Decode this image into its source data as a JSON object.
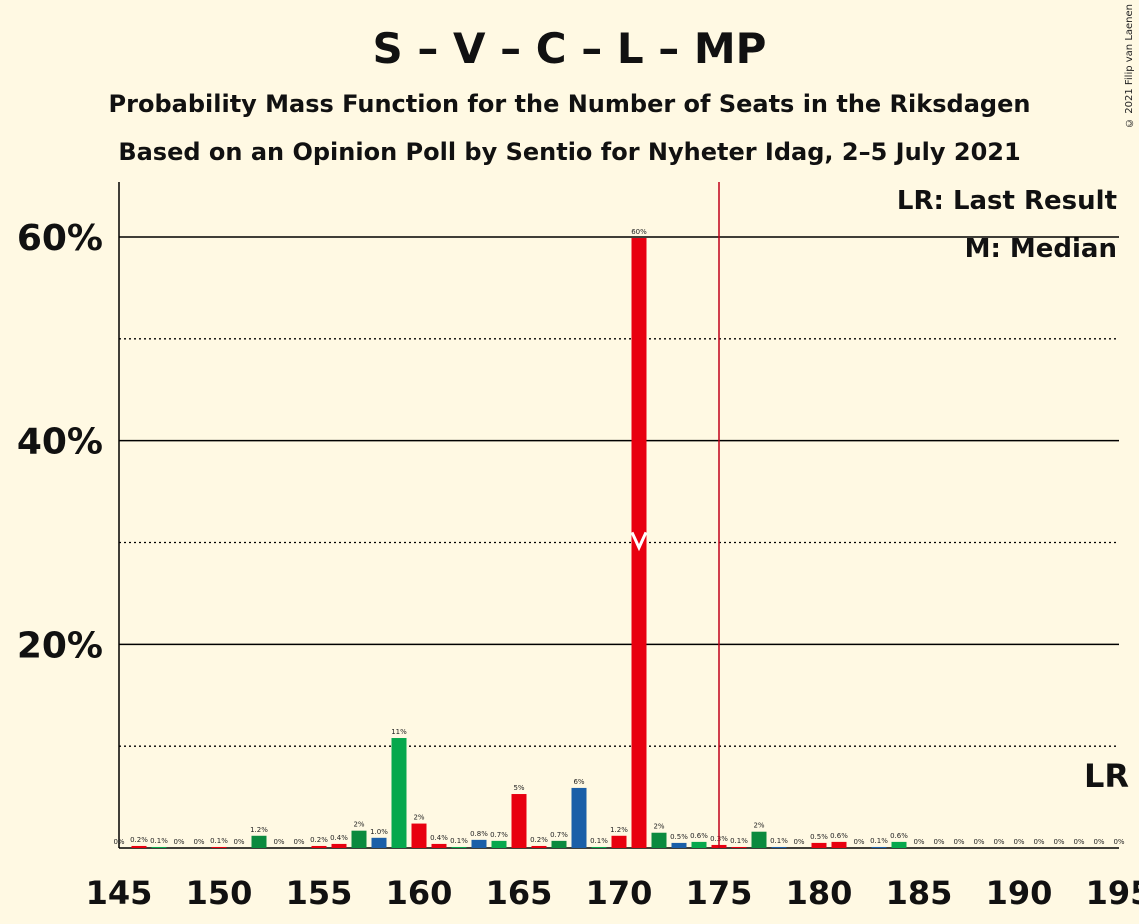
{
  "title": "S – V – C – L – MP",
  "subtitle1": "Probability Mass Function for the Number of Seats in the Riksdagen",
  "subtitle2": "Based on an Opinion Poll by Sentio for Nyheter Idag, 2–5 July 2021",
  "copyright": "© 2021 Filip van Laenen",
  "legend": {
    "lr": "LR: Last Result",
    "median": "M: Median",
    "lr_marker": "LR"
  },
  "colors": {
    "red": "#e8000f",
    "green": "#06a84d",
    "darkgreen": "#0b8a3e",
    "blue": "#1a5fa8",
    "lastresult": "#c0001a",
    "background": "#fff9e3"
  },
  "chart_data": {
    "type": "bar",
    "xlim": [
      145,
      195
    ],
    "ylim": [
      0,
      65
    ],
    "x_ticks": [
      145,
      150,
      155,
      160,
      165,
      170,
      175,
      180,
      185,
      190,
      195
    ],
    "y_ticks_solid": [
      20,
      40,
      60
    ],
    "y_ticks_dotted": [
      10,
      30,
      50
    ],
    "y_tick_labels": [
      "20%",
      "40%",
      "60%"
    ],
    "last_result": 175,
    "median": 171,
    "bars": [
      {
        "x": 145,
        "value": 0,
        "label": "0%",
        "color": "green"
      },
      {
        "x": 146,
        "value": 0.2,
        "label": "0.2%",
        "color": "red"
      },
      {
        "x": 147,
        "value": 0.1,
        "label": "0.1%",
        "color": "green"
      },
      {
        "x": 148,
        "value": 0,
        "label": "0%",
        "color": "blue"
      },
      {
        "x": 149,
        "value": 0,
        "label": "0%",
        "color": "green"
      },
      {
        "x": 150,
        "value": 0.1,
        "label": "0.1%",
        "color": "red"
      },
      {
        "x": 151,
        "value": 0,
        "label": "0%",
        "color": "blue"
      },
      {
        "x": 152,
        "value": 1.2,
        "label": "1.2%",
        "color": "darkgreen"
      },
      {
        "x": 153,
        "value": 0,
        "label": "0%",
        "color": "blue"
      },
      {
        "x": 154,
        "value": 0,
        "label": "0%",
        "color": "green"
      },
      {
        "x": 155,
        "value": 0.2,
        "label": "0.2%",
        "color": "red"
      },
      {
        "x": 156,
        "value": 0.4,
        "label": "0.4%",
        "color": "red"
      },
      {
        "x": 157,
        "value": 1.7,
        "label": "2%",
        "color": "darkgreen"
      },
      {
        "x": 158,
        "value": 1.0,
        "label": "1.0%",
        "color": "blue"
      },
      {
        "x": 159,
        "value": 10.8,
        "label": "11%",
        "color": "green"
      },
      {
        "x": 160,
        "value": 2.4,
        "label": "2%",
        "color": "red"
      },
      {
        "x": 161,
        "value": 0.4,
        "label": "0.4%",
        "color": "red"
      },
      {
        "x": 162,
        "value": 0.1,
        "label": "0.1%",
        "color": "green"
      },
      {
        "x": 163,
        "value": 0.8,
        "label": "0.8%",
        "color": "blue"
      },
      {
        "x": 164,
        "value": 0.7,
        "label": "0.7%",
        "color": "green"
      },
      {
        "x": 165,
        "value": 5.3,
        "label": "5%",
        "color": "red"
      },
      {
        "x": 166,
        "value": 0.2,
        "label": "0.2%",
        "color": "red"
      },
      {
        "x": 167,
        "value": 0.7,
        "label": "0.7%",
        "color": "darkgreen"
      },
      {
        "x": 168,
        "value": 5.9,
        "label": "6%",
        "color": "blue"
      },
      {
        "x": 169,
        "value": 0.1,
        "label": "0.1%",
        "color": "green"
      },
      {
        "x": 170,
        "value": 1.2,
        "label": "1.2%",
        "color": "red"
      },
      {
        "x": 171,
        "value": 59.9,
        "label": "60%",
        "color": "red"
      },
      {
        "x": 172,
        "value": 1.5,
        "label": "2%",
        "color": "darkgreen"
      },
      {
        "x": 173,
        "value": 0.5,
        "label": "0.5%",
        "color": "blue"
      },
      {
        "x": 174,
        "value": 0.6,
        "label": "0.6%",
        "color": "green"
      },
      {
        "x": 175,
        "value": 0.3,
        "label": "0.3%",
        "color": "red"
      },
      {
        "x": 176,
        "value": 0.1,
        "label": "0.1%",
        "color": "red"
      },
      {
        "x": 177,
        "value": 1.6,
        "label": "2%",
        "color": "darkgreen"
      },
      {
        "x": 178,
        "value": 0.1,
        "label": "0.1%",
        "color": "blue"
      },
      {
        "x": 179,
        "value": 0,
        "label": "0%",
        "color": "green"
      },
      {
        "x": 180,
        "value": 0.5,
        "label": "0.5%",
        "color": "red"
      },
      {
        "x": 181,
        "value": 0.6,
        "label": "0.6%",
        "color": "red"
      },
      {
        "x": 182,
        "value": 0,
        "label": "0%",
        "color": "green"
      },
      {
        "x": 183,
        "value": 0.1,
        "label": "0.1%",
        "color": "blue"
      },
      {
        "x": 184,
        "value": 0.6,
        "label": "0.6%",
        "color": "green"
      },
      {
        "x": 185,
        "value": 0,
        "label": "0%",
        "color": "red"
      },
      {
        "x": 186,
        "value": 0,
        "label": "0%",
        "color": "red"
      },
      {
        "x": 187,
        "value": 0,
        "label": "0%",
        "color": "green"
      },
      {
        "x": 188,
        "value": 0,
        "label": "0%",
        "color": "blue"
      },
      {
        "x": 189,
        "value": 0,
        "label": "0%",
        "color": "green"
      },
      {
        "x": 190,
        "value": 0,
        "label": "0%",
        "color": "red"
      },
      {
        "x": 191,
        "value": 0,
        "label": "0%",
        "color": "red"
      },
      {
        "x": 192,
        "value": 0,
        "label": "0%",
        "color": "green"
      },
      {
        "x": 193,
        "value": 0,
        "label": "0%",
        "color": "blue"
      },
      {
        "x": 194,
        "value": 0,
        "label": "0%",
        "color": "green"
      },
      {
        "x": 195,
        "value": 0,
        "label": "0%",
        "color": "red"
      }
    ]
  }
}
